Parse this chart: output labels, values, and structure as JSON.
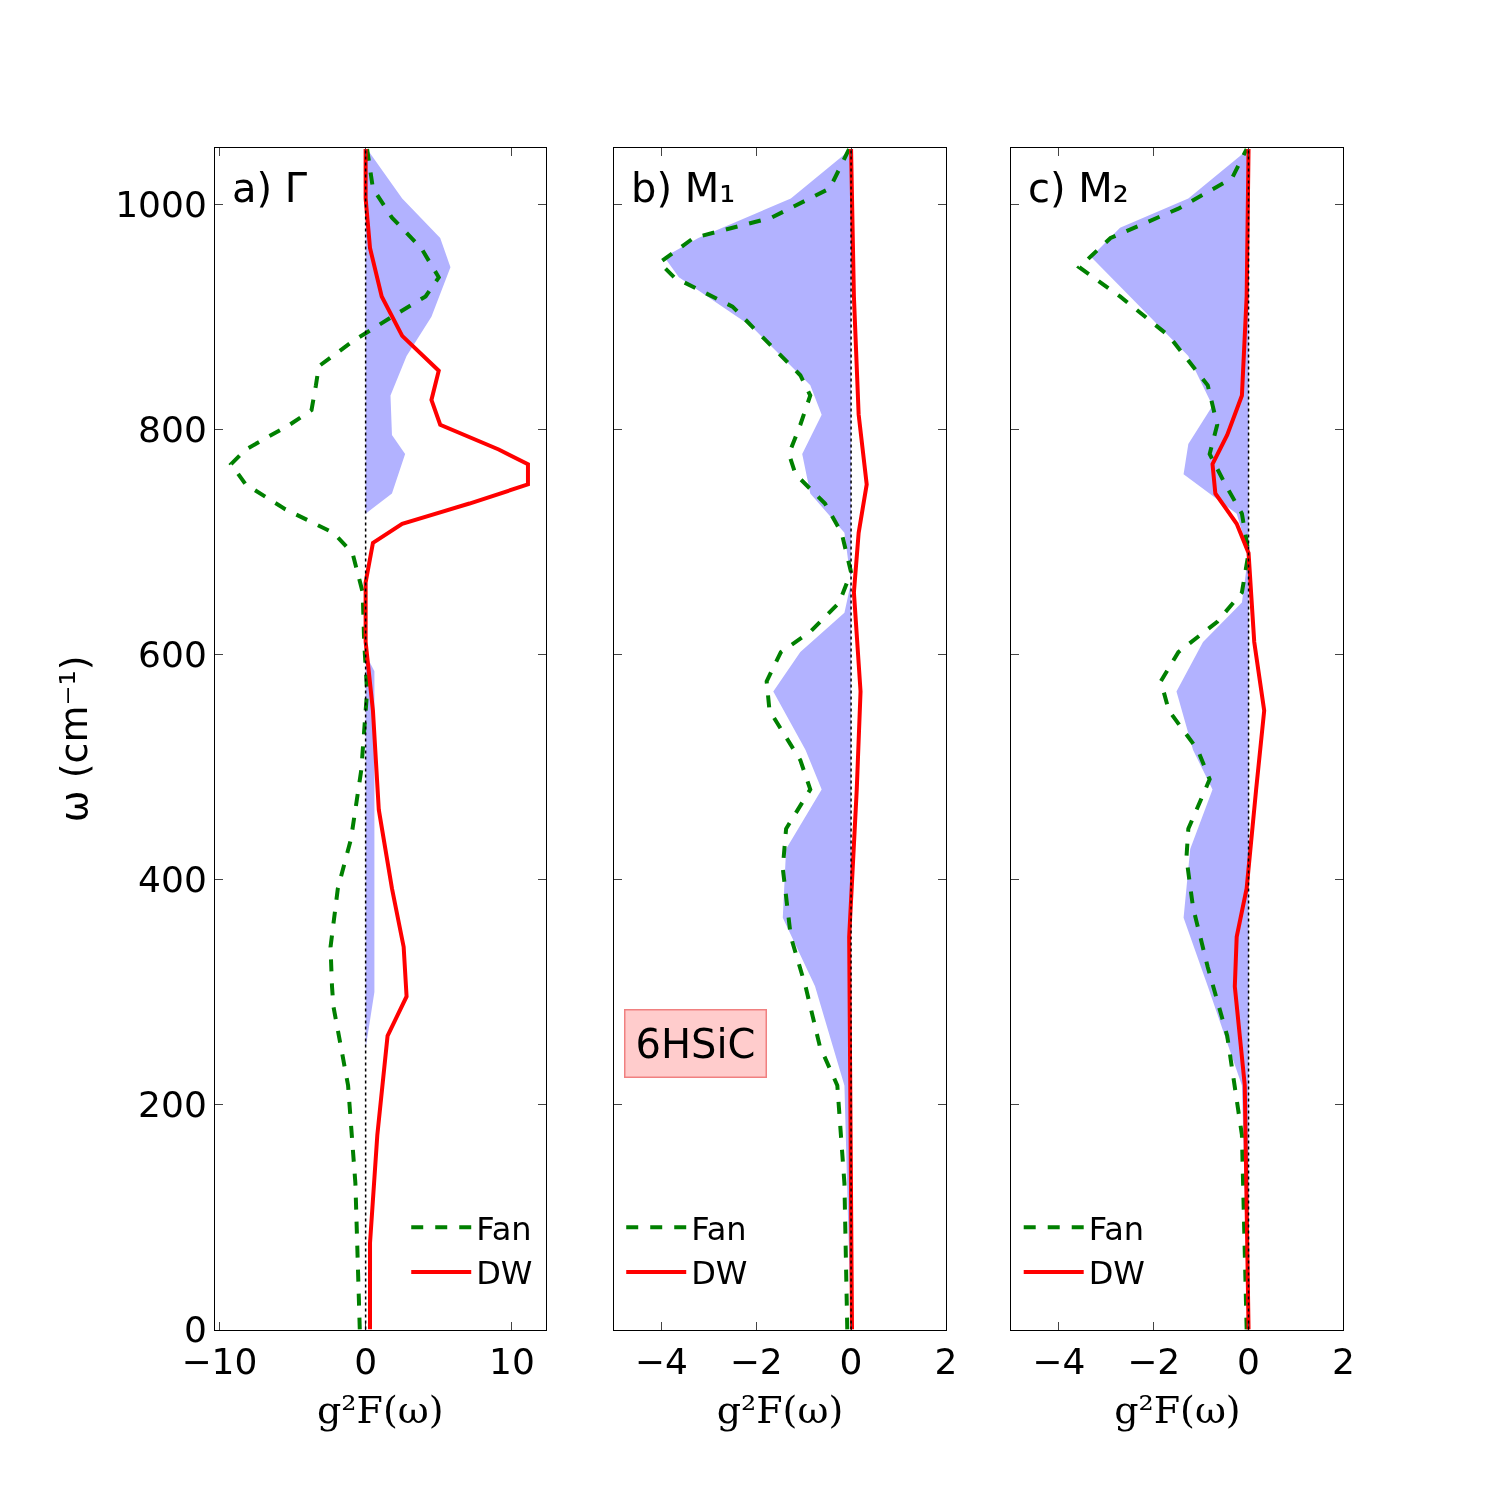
{
  "chart_data": [
    {
      "type": "line",
      "title": "a) Γ",
      "xlabel": "g²F(ω)",
      "ylabel": "ω (cm⁻¹)",
      "xlim": [
        -10.3,
        12.3
      ],
      "xticks": [
        -10,
        0,
        10
      ],
      "ylim": [
        0,
        1050
      ],
      "yticks": [
        0,
        200,
        400,
        600,
        800,
        1000
      ],
      "legend": "bottom right",
      "ref_lines": [
        {
          "axis": "x",
          "value": 0,
          "color": "#000000",
          "line_style": "dotted"
        }
      ],
      "series": [
        {
          "type": "area",
          "color": "#b2b2ff",
          "x": [
            0,
            0,
            0.6,
            0.6,
            0,
            0,
            1.8,
            2.7,
            1.8,
            1.7,
            2.8,
            4.5,
            5.8,
            5.1,
            2.5,
            0.1
          ],
          "values": [
            0,
            250,
            300,
            585,
            600,
            725,
            743,
            778,
            795,
            830,
            865,
            900,
            944,
            970,
            1005,
            1049
          ]
        },
        {
          "name": "Fan",
          "color": "#008000",
          "line_style": "dashed",
          "x": [
            -0.4,
            -0.7,
            -1.2,
            -2.2,
            -2.3,
            -2.4,
            -1.9,
            -1.0,
            -0.3,
            0.1,
            -0.1,
            -0.2,
            -0.9,
            -2.2,
            -5.5,
            -8.2,
            -9.2,
            -8.2,
            -5.2,
            -3.7,
            -3.4,
            -3.2,
            -0.9,
            1.8,
            4.1,
            5.0,
            3.8,
            1.8,
            0.5,
            0.1
          ],
          "values": [
            0,
            130,
            217,
            287,
            305,
            340,
            392,
            436,
            497,
            567,
            611,
            655,
            690,
            708,
            729,
            751,
            769,
            782,
            804,
            817,
            839,
            856,
            878,
            900,
            918,
            935,
            961,
            988,
            1014,
            1049
          ]
        },
        {
          "name": "DW",
          "color": "#ff0000",
          "line_style": "solid",
          "x": [
            0.3,
            0.3,
            0.8,
            1.5,
            2.8,
            2.6,
            1.8,
            0.9,
            0.5,
            0,
            0,
            0.5,
            2.5,
            7.1,
            11.1,
            11.1,
            9.1,
            5.1,
            4.5,
            5.0,
            2.5,
            1.1,
            0.3,
            0,
            0
          ],
          "values": [
            0,
            77,
            173,
            261,
            296,
            340,
            392,
            462,
            550,
            611,
            664,
            699,
            716,
            734,
            751,
            769,
            782,
            804,
            826,
            852,
            883,
            918,
            961,
            1005,
            1049
          ]
        }
      ]
    },
    {
      "type": "line",
      "title": "b) M₁",
      "xlabel": "g²F(ω)",
      "xlim": [
        -5,
        2
      ],
      "xticks": [
        -4,
        -2,
        0,
        2
      ],
      "ylim": [
        0,
        1050
      ],
      "yticks": [
        0,
        200,
        400,
        600,
        800,
        1000
      ],
      "tick_labels": "x",
      "legend": "bottom left",
      "annotations": [
        "6HSiC"
      ],
      "ref_lines": [
        {
          "axis": "x",
          "value": 0,
          "color": "#000000",
          "line_style": "dotted"
        }
      ],
      "series": [
        {
          "type": "area",
          "color": "#b2b2ff",
          "x": [
            0,
            -0.14,
            -0.76,
            -1.44,
            -1.37,
            -0.62,
            -0.96,
            -1.64,
            -1.07,
            -0.14,
            0,
            -0.14,
            -0.86,
            -1.03,
            -0.62,
            -0.86,
            -2.09,
            -3.63,
            -3.94,
            -3.22,
            -1.27,
            0
          ],
          "values": [
            0,
            217,
            305,
            366,
            427,
            480,
            515,
            567,
            602,
            637,
            664,
            708,
            743,
            778,
            813,
            839,
            891,
            935,
            953,
            970,
            1005,
            1049
          ]
        },
        {
          "name": "Fan",
          "color": "#008000",
          "line_style": "dashed",
          "x": [
            -0.08,
            -0.14,
            -0.29,
            -0.66,
            -0.96,
            -1.27,
            -1.44,
            -1.37,
            -0.86,
            -1.07,
            -1.72,
            -1.78,
            -1.48,
            -0.86,
            -0.25,
            0,
            -0.2,
            -0.55,
            -1.17,
            -1.31,
            -1.07,
            -0.86,
            -1.07,
            -1.68,
            -2.5,
            -3.73,
            -4.04,
            -3.32,
            -1.68,
            -0.45,
            -0.04
          ],
          "values": [
            0,
            130,
            217,
            252,
            305,
            349,
            410,
            445,
            480,
            506,
            550,
            576,
            602,
            620,
            646,
            673,
            708,
            734,
            760,
            778,
            804,
            830,
            848,
            874,
            909,
            935,
            948,
            970,
            988,
            1014,
            1049
          ]
        },
        {
          "name": "DW",
          "color": "#ff0000",
          "line_style": "solid",
          "x": [
            0.02,
            -0.04,
            0.12,
            0.2,
            0.06,
            0.16,
            0.33,
            0.16,
            0.06,
            0
          ],
          "values": [
            0,
            349,
            480,
            567,
            655,
            708,
            751,
            813,
            918,
            1049
          ]
        }
      ]
    },
    {
      "type": "line",
      "title": "c) M₂",
      "xlabel": "g²F(ω)",
      "xlim": [
        -5,
        2
      ],
      "xticks": [
        -4,
        -2,
        0,
        2
      ],
      "ylim": [
        0,
        1050
      ],
      "yticks": [
        0,
        200,
        400,
        600,
        800,
        1000
      ],
      "tick_labels": "x",
      "legend": "bottom left",
      "ref_lines": [
        {
          "axis": "x",
          "value": 0,
          "color": "#000000",
          "line_style": "dotted"
        }
      ],
      "series": [
        {
          "type": "area",
          "color": "#b2b2ff",
          "x": [
            0,
            -0.14,
            -0.86,
            -1.37,
            -1.23,
            -0.76,
            -1.17,
            -1.52,
            -0.96,
            -0.14,
            0,
            -0.25,
            -1.37,
            -1.27,
            -0.76,
            -1.27,
            -2.5,
            -3.32,
            -2.71,
            -1.27,
            0
          ],
          "values": [
            0,
            217,
            305,
            366,
            427,
            480,
            515,
            567,
            611,
            646,
            690,
            725,
            760,
            787,
            821,
            865,
            918,
            953,
            979,
            1005,
            1049
          ]
        },
        {
          "name": "Fan",
          "color": "#008000",
          "line_style": "dashed",
          "x": [
            -0.04,
            -0.14,
            -0.45,
            -0.86,
            -1.17,
            -1.31,
            -1.27,
            -0.82,
            -1.07,
            -1.68,
            -1.85,
            -1.48,
            -0.66,
            -0.14,
            0,
            -0.14,
            -0.49,
            -0.82,
            -0.66,
            -0.86,
            -1.68,
            -2.71,
            -3.57,
            -2.91,
            -1.48,
            -0.35,
            -0.04
          ],
          "values": [
            0,
            173,
            261,
            322,
            375,
            419,
            445,
            489,
            515,
            550,
            576,
            602,
            629,
            655,
            690,
            725,
            751,
            778,
            804,
            839,
            883,
            918,
            944,
            970,
            996,
            1023,
            1049
          ]
        },
        {
          "name": "DW",
          "color": "#ff0000",
          "line_style": "solid",
          "x": [
            0,
            -0.08,
            -0.29,
            -0.25,
            -0.04,
            0.16,
            0.33,
            0.12,
            0,
            -0.25,
            -0.7,
            -0.76,
            -0.45,
            -0.14,
            -0.04,
            0
          ],
          "values": [
            0,
            217,
            305,
            349,
            392,
            480,
            550,
            611,
            690,
            716,
            743,
            769,
            795,
            830,
            918,
            1049
          ]
        }
      ]
    }
  ]
}
